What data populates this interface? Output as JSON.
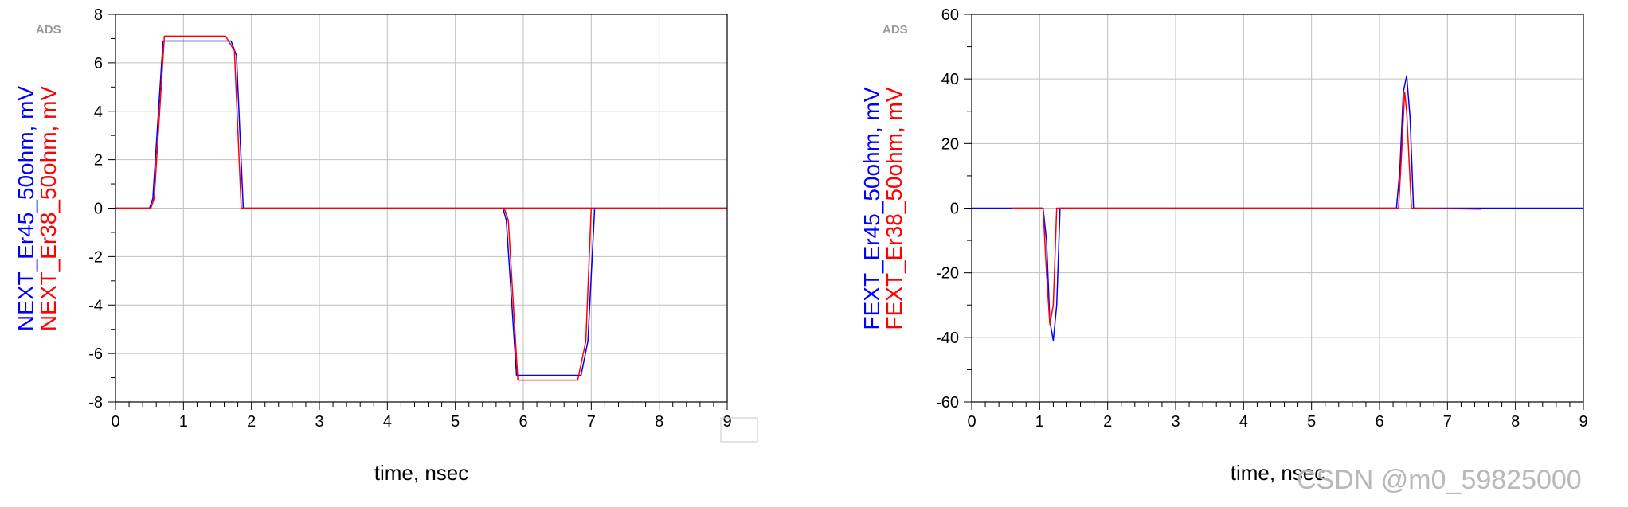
{
  "watermark": "CSDN @m0_59825000",
  "colors": {
    "blue": "#0000ff",
    "red": "#ff0000",
    "grid": "#c0c0c0"
  },
  "chart_data": [
    {
      "type": "line",
      "logo": "ADS",
      "xlabel": "time, nsec",
      "ylabels": [
        "NEXT_Er45_50ohm, mV",
        "NEXT_Er38_50ohm, mV"
      ],
      "xlim": [
        0,
        9
      ],
      "ylim": [
        -8,
        8
      ],
      "xticks": [
        0,
        1,
        2,
        3,
        4,
        5,
        6,
        7,
        8,
        9
      ],
      "yticks": [
        -8,
        -6,
        -4,
        -2,
        0,
        2,
        4,
        6,
        8
      ],
      "grid": true,
      "series": [
        {
          "name": "NEXT_Er45_50ohm",
          "color": "#0000ff",
          "x": [
            0,
            0.5,
            0.55,
            0.7,
            1.7,
            1.78,
            1.88,
            9
          ],
          "y": [
            0,
            0,
            0.4,
            6.9,
            6.9,
            6.3,
            0,
            0
          ]
        },
        {
          "name": "NEXT_Er38_50ohm",
          "color": "#ff0000",
          "x": [
            0,
            0.52,
            0.57,
            0.72,
            1.62,
            1.75,
            1.85,
            9
          ],
          "y": [
            0,
            0,
            0.4,
            7.1,
            7.1,
            6.5,
            0,
            0
          ]
        },
        {
          "name": "NEXT_Er45_50ohm",
          "color": "#0000ff",
          "x": [
            5.7,
            5.75,
            5.9,
            6.85,
            6.95,
            7.05
          ],
          "y": [
            0,
            -0.5,
            -6.9,
            -6.9,
            -5.5,
            0
          ]
        },
        {
          "name": "NEXT_Er38_50ohm",
          "color": "#ff0000",
          "x": [
            5.72,
            5.78,
            5.92,
            6.8,
            6.92,
            7.0
          ],
          "y": [
            0,
            -0.5,
            -7.1,
            -7.1,
            -5.5,
            0
          ]
        }
      ],
      "outlined_tick": 9
    },
    {
      "type": "line",
      "logo": "ADS",
      "xlabel": "time, nsec",
      "ylabels": [
        "FEXT_Er45_50ohm, mV",
        "FEXT_Er38_50ohm, mV"
      ],
      "xlim": [
        0,
        9
      ],
      "ylim": [
        -60,
        60
      ],
      "xticks": [
        0,
        1,
        2,
        3,
        4,
        5,
        6,
        7,
        8,
        9
      ],
      "yticks": [
        -60,
        -40,
        -20,
        0,
        20,
        40,
        60
      ],
      "grid": true,
      "series": [
        {
          "name": "FEXT_Er45_50ohm",
          "color": "#0000ff",
          "x": [
            0,
            1.05,
            1.1,
            1.15,
            1.2,
            1.25,
            1.3,
            6.25,
            6.3,
            6.35,
            6.4,
            6.45,
            6.5,
            9
          ],
          "y": [
            0,
            0,
            -10,
            -35,
            -41,
            -30,
            0,
            0,
            12,
            36,
            41,
            28,
            0,
            0
          ]
        },
        {
          "name": "FEXT_Er38_50ohm",
          "color": "#ff0000",
          "x": [
            0.6,
            1.05,
            1.1,
            1.15,
            1.2,
            1.25,
            6.28,
            6.32,
            6.37,
            6.4,
            6.47,
            7.5
          ],
          "y": [
            0,
            0,
            -20,
            -36,
            -30,
            0,
            0,
            15,
            36,
            30,
            0,
            -0.3
          ]
        }
      ]
    }
  ]
}
